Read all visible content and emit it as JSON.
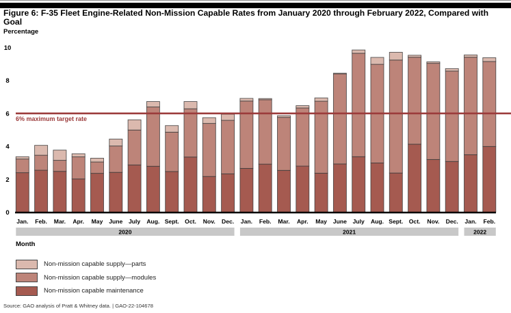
{
  "title": "Figure 6: F-35 Fleet Engine-Related Non-Mission Capable Rates from January 2020 through February 2022, Compared with Goal",
  "source": "Source: GAO analysis of Pratt & Whitney data.  |  GAO-22-104678",
  "colors": {
    "parts": "#dbb9ae",
    "modules": "#bd8479",
    "maintenance": "#a55a50",
    "target_line": "#9c3b3b",
    "year_band": "#c8c8c8",
    "axis": "#000000"
  },
  "chart_data": {
    "type": "bar",
    "stacked": true,
    "title": "Figure 6: F-35 Fleet Engine-Related Non-Mission Capable Rates from January 2020 through February 2022, Compared with Goal",
    "ylabel": "Percentage",
    "xlabel": "Month",
    "ylim": [
      0,
      10
    ],
    "yticks": [
      0,
      2,
      4,
      6,
      8,
      10
    ],
    "grid": false,
    "legend_position": "bottom-left",
    "categories": [
      "Jan.",
      "Feb.",
      "Mar.",
      "Apr.",
      "May",
      "June",
      "July",
      "Aug.",
      "Sept.",
      "Oct.",
      "Nov.",
      "Dec.",
      "Jan.",
      "Feb.",
      "Mar.",
      "Apr.",
      "May",
      "June",
      "July",
      "Aug.",
      "Sept.",
      "Oct.",
      "Nov.",
      "Dec.",
      "Jan.",
      "Feb."
    ],
    "year_groups": [
      {
        "label": "2020",
        "start": 0,
        "end": 11
      },
      {
        "label": "2021",
        "start": 12,
        "end": 23
      },
      {
        "label": "2022",
        "start": 24,
        "end": 25
      }
    ],
    "series": [
      {
        "name": "Non-mission capable maintenance",
        "key": "maintenance",
        "values": [
          2.4,
          2.55,
          2.48,
          2.02,
          2.36,
          2.42,
          2.87,
          2.79,
          2.47,
          3.35,
          2.17,
          2.33,
          2.66,
          2.92,
          2.54,
          2.8,
          2.37,
          2.93,
          3.37,
          2.99,
          2.38,
          4.13,
          3.2,
          3.08,
          3.49,
          3.99
        ]
      },
      {
        "name": "Non-mission capable supply—modules",
        "key": "modules",
        "values": [
          0.83,
          0.91,
          0.67,
          1.34,
          0.69,
          1.6,
          2.12,
          3.6,
          2.39,
          2.93,
          3.22,
          3.25,
          4.09,
          3.91,
          3.22,
          3.53,
          4.37,
          5.47,
          6.28,
          5.99,
          6.86,
          5.28,
          5.84,
          5.49,
          5.92,
          5.16
        ]
      },
      {
        "name": "Non-mission capable supply—parts",
        "key": "parts",
        "values": [
          0.14,
          0.6,
          0.62,
          0.19,
          0.23,
          0.42,
          0.62,
          0.33,
          0.4,
          0.44,
          0.35,
          0.37,
          0.16,
          0.07,
          0.1,
          0.14,
          0.2,
          0.04,
          0.2,
          0.42,
          0.47,
          0.12,
          0.09,
          0.15,
          0.14,
          0.23
        ]
      }
    ],
    "reference_line": {
      "value": 6,
      "label": "6% maximum target rate"
    }
  },
  "legend": [
    {
      "key": "parts",
      "label": "Non-mission capable supply—parts"
    },
    {
      "key": "modules",
      "label": "Non-mission capable supply—modules"
    },
    {
      "key": "maintenance",
      "label": "Non-mission capable maintenance"
    }
  ]
}
